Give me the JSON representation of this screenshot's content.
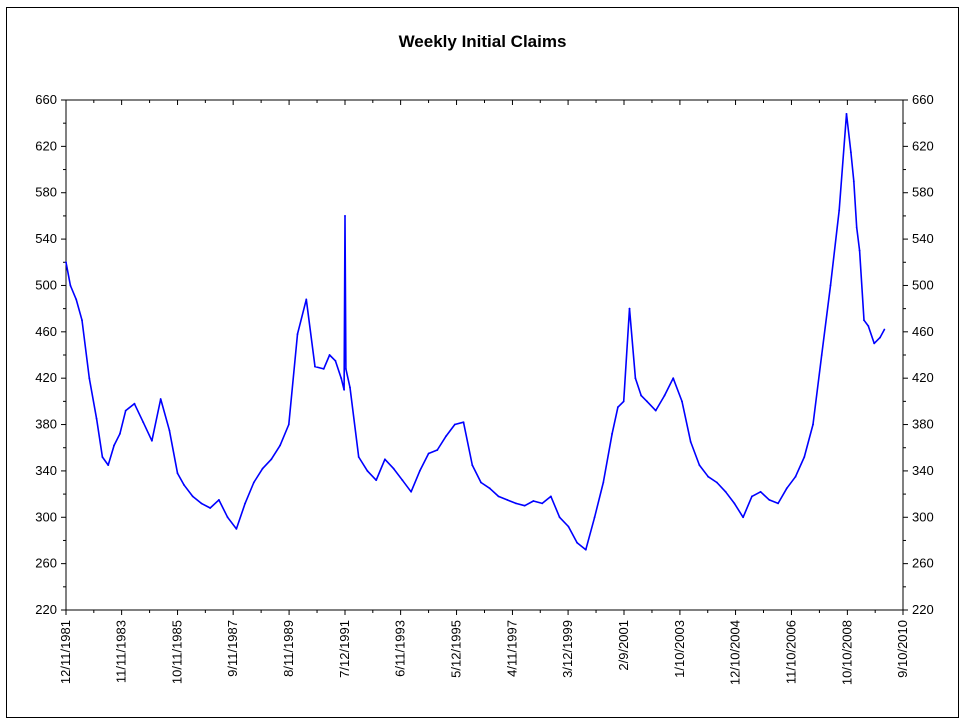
{
  "chart_data": {
    "type": "line",
    "title": "Weekly Initial Claims",
    "xlabel": "",
    "ylabel": "",
    "ylim": [
      220,
      660
    ],
    "y_ticks": [
      220,
      260,
      300,
      340,
      380,
      420,
      460,
      500,
      540,
      580,
      620,
      660
    ],
    "secondary_y_axis": true,
    "x_tick_labels": [
      "12/11/1981",
      "11/11/1983",
      "10/11/1985",
      "9/11/1987",
      "8/11/1989",
      "7/12/1991",
      "6/11/1993",
      "5/12/1995",
      "4/11/1997",
      "3/12/1999",
      "2/9/2001",
      "1/10/2003",
      "12/10/2004",
      "11/10/2006",
      "10/10/2008",
      "9/10/2010"
    ],
    "x_tick_years": [
      1981.95,
      1983.86,
      1985.78,
      1987.69,
      1989.61,
      1991.53,
      1993.44,
      1995.36,
      1997.28,
      1999.19,
      2001.11,
      2003.03,
      2004.94,
      2006.86,
      2008.78,
      2010.69
    ],
    "x_range": [
      1981.95,
      2010.69
    ],
    "grid": false,
    "legend": "none",
    "line_color": "#0000ff",
    "series": [
      {
        "x": [
          1981.95,
          1982.1,
          1982.3,
          1982.5,
          1982.75,
          1983.0,
          1983.2,
          1983.4,
          1983.6,
          1983.8,
          1984.0,
          1984.3,
          1984.6,
          1984.9,
          1985.2,
          1985.5,
          1985.78,
          1986.0,
          1986.3,
          1986.6,
          1986.9,
          1987.2,
          1987.5,
          1987.8,
          1988.1,
          1988.4,
          1988.7,
          1989.0,
          1989.3,
          1989.6,
          1989.9,
          1990.2,
          1990.5,
          1990.8,
          1991.0,
          1991.2,
          1991.4,
          1991.5,
          1991.53,
          1991.56,
          1991.7,
          1992.0,
          1992.3,
          1992.6,
          1992.9,
          1993.2,
          1993.5,
          1993.8,
          1994.1,
          1994.4,
          1994.7,
          1995.0,
          1995.3,
          1995.6,
          1995.9,
          1996.2,
          1996.5,
          1996.8,
          1997.1,
          1997.4,
          1997.7,
          1998.0,
          1998.3,
          1998.6,
          1998.9,
          1999.2,
          1999.5,
          1999.8,
          2000.1,
          2000.4,
          2000.7,
          2000.9,
          2001.1,
          2001.3,
          2001.5,
          2001.7,
          2001.9,
          2002.2,
          2002.5,
          2002.8,
          2003.1,
          2003.4,
          2003.7,
          2004.0,
          2004.3,
          2004.6,
          2004.9,
          2005.2,
          2005.5,
          2005.8,
          2006.1,
          2006.4,
          2006.7,
          2007.0,
          2007.3,
          2007.6,
          2007.9,
          2008.2,
          2008.5,
          2008.75,
          2008.9,
          2009.0,
          2009.1,
          2009.2,
          2009.35,
          2009.5,
          2009.7,
          2009.9,
          2010.05
        ],
        "y": [
          520,
          500,
          488,
          470,
          420,
          385,
          352,
          345,
          362,
          372,
          392,
          398,
          382,
          366,
          402,
          375,
          338,
          328,
          318,
          312,
          308,
          315,
          300,
          290,
          312,
          330,
          342,
          350,
          362,
          380,
          458,
          488,
          430,
          428,
          440,
          435,
          420,
          410,
          560,
          428,
          412,
          352,
          340,
          332,
          350,
          342,
          332,
          322,
          340,
          355,
          358,
          370,
          380,
          382,
          345,
          330,
          325,
          318,
          315,
          312,
          310,
          314,
          312,
          318,
          300,
          292,
          278,
          272,
          300,
          330,
          372,
          395,
          400,
          480,
          420,
          405,
          400,
          392,
          405,
          420,
          400,
          365,
          345,
          335,
          330,
          322,
          312,
          300,
          318,
          322,
          315,
          312,
          325,
          335,
          352,
          380,
          440,
          500,
          565,
          648,
          615,
          590,
          550,
          530,
          470,
          465,
          450,
          455,
          462
        ]
      }
    ]
  }
}
